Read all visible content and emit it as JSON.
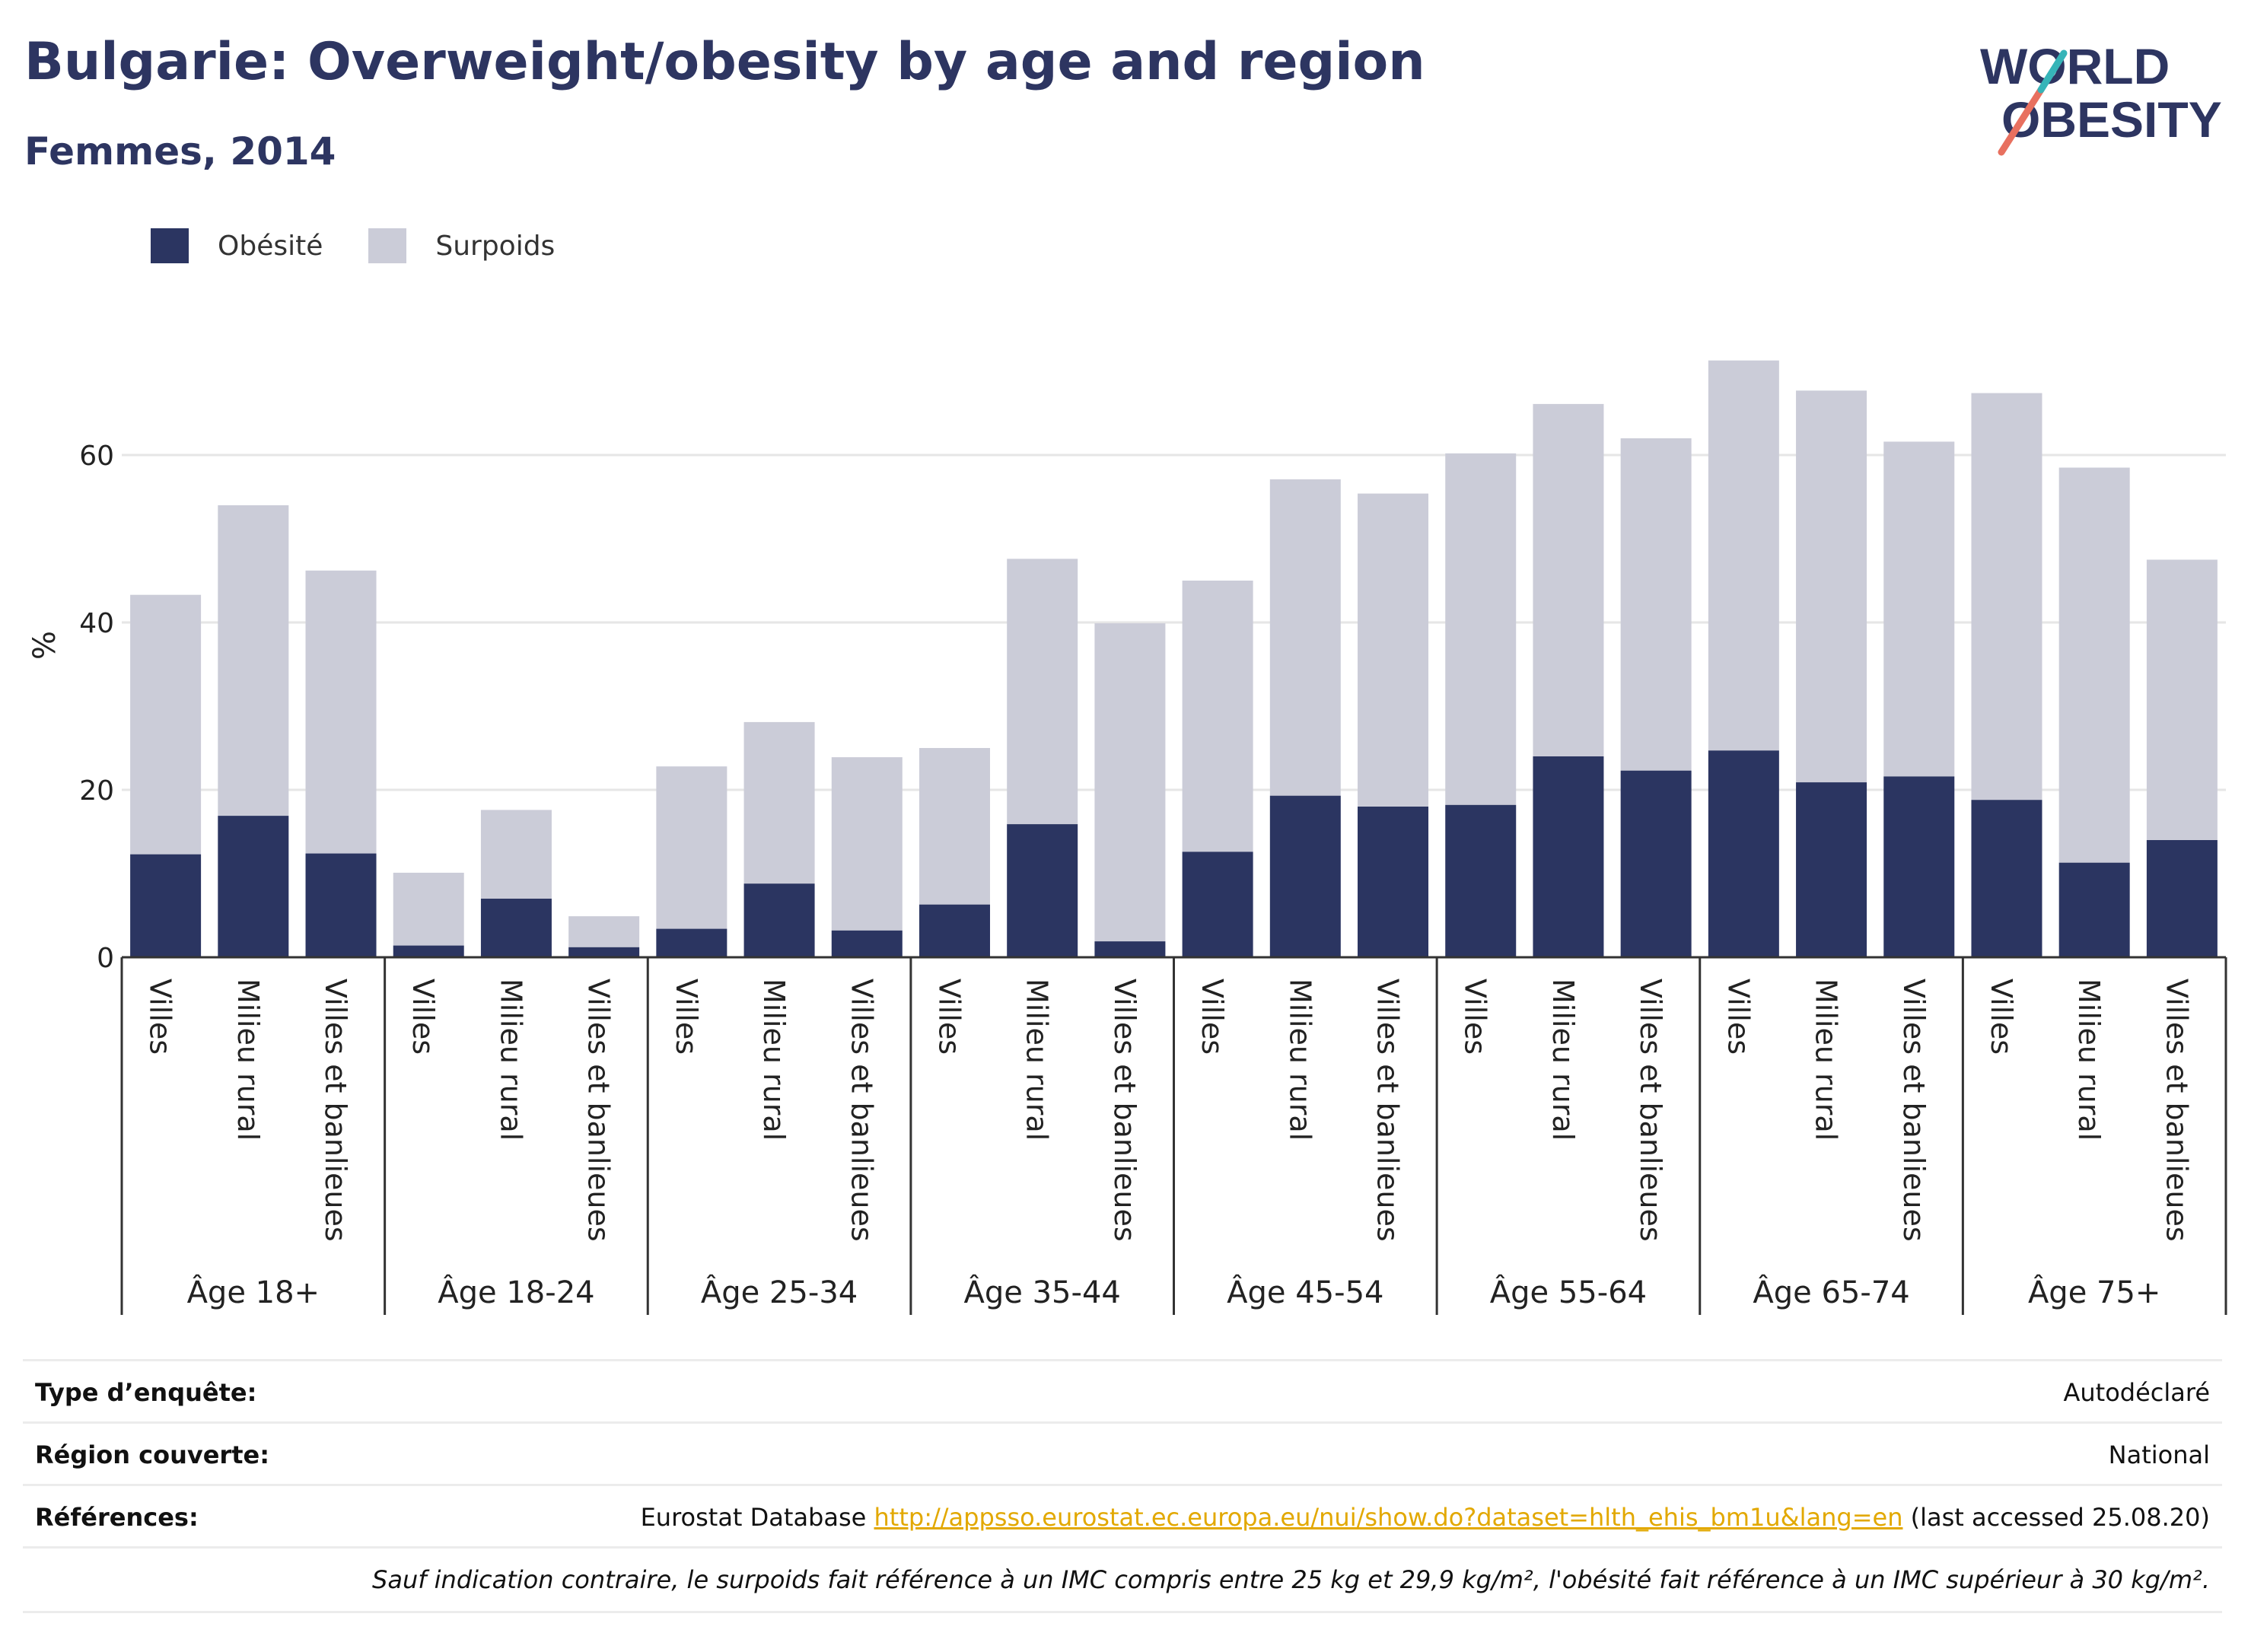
{
  "header": {
    "title": "Bulgarie: Overweight/obesity by age and region",
    "subtitle": "Femmes, 2014"
  },
  "logo": {
    "line1": "WORLD",
    "line2": "OBESITY"
  },
  "legend": {
    "obesity_label": "Obésité",
    "overweight_label": "Surpoids"
  },
  "colors": {
    "obesity": "#2b3561",
    "overweight": "#cbccd8",
    "grid": "#e6e6e6",
    "axis": "#333333",
    "link": "#e2a800"
  },
  "chart_data": {
    "type": "bar",
    "stacked": true,
    "ylabel": "%",
    "ylim": [
      0,
      75
    ],
    "yticks": [
      0,
      20,
      40,
      60
    ],
    "grid": true,
    "legend_position": "top-left",
    "groups": [
      {
        "label": "Âge 18+",
        "categories": [
          "Villes",
          "Milieu rural",
          "Villes et banlieues"
        ],
        "obesity": [
          12.3,
          16.9,
          12.4
        ],
        "overweight": [
          31.0,
          37.1,
          33.8
        ]
      },
      {
        "label": "Âge 18-24",
        "categories": [
          "Villes",
          "Milieu rural",
          "Villes et banlieues"
        ],
        "obesity": [
          1.4,
          7.0,
          1.2
        ],
        "overweight": [
          8.7,
          10.6,
          3.7
        ]
      },
      {
        "label": "Âge 25-34",
        "categories": [
          "Villes",
          "Milieu rural",
          "Villes et banlieues"
        ],
        "obesity": [
          3.4,
          8.8,
          3.2
        ],
        "overweight": [
          19.4,
          19.3,
          20.7
        ]
      },
      {
        "label": "Âge 35-44",
        "categories": [
          "Villes",
          "Milieu rural",
          "Villes et banlieues"
        ],
        "obesity": [
          6.3,
          15.9,
          1.9
        ],
        "overweight": [
          18.7,
          31.7,
          38.0
        ]
      },
      {
        "label": "Âge 45-54",
        "categories": [
          "Villes",
          "Milieu rural",
          "Villes et banlieues"
        ],
        "obesity": [
          12.6,
          19.3,
          18.0
        ],
        "overweight": [
          32.4,
          37.8,
          37.4
        ]
      },
      {
        "label": "Âge 55-64",
        "categories": [
          "Villes",
          "Milieu rural",
          "Villes et banlieues"
        ],
        "obesity": [
          18.2,
          24.0,
          22.3
        ],
        "overweight": [
          42.0,
          42.1,
          39.7
        ]
      },
      {
        "label": "Âge 65-74",
        "categories": [
          "Villes",
          "Milieu rural",
          "Villes et banlieues"
        ],
        "obesity": [
          24.7,
          20.9,
          21.6
        ],
        "overweight": [
          46.6,
          46.8,
          40.0
        ]
      },
      {
        "label": "Âge 75+",
        "categories": [
          "Villes",
          "Milieu rural",
          "Villes et banlieues"
        ],
        "obesity": [
          18.8,
          11.3,
          14.0
        ],
        "overweight": [
          48.6,
          47.2,
          33.5
        ]
      }
    ]
  },
  "info": {
    "survey_type_label": "Type d’enquête:",
    "survey_type_value": "Autodéclaré",
    "region_label": "Région couverte:",
    "region_value": "National",
    "references_label": "Références:",
    "references_prefix": "Eurostat Database",
    "references_link": "http://appsso.eurostat.ec.europa.eu/nui/show.do?dataset=hlth_ehis_bm1u&lang=en",
    "references_suffix": "(last accessed 25.08.20)",
    "note": "Sauf indication contraire, le surpoids fait référence à un IMC compris entre 25 kg et 29,9 kg/m², l'obésité fait référence à un IMC supérieur à 30 kg/m²."
  }
}
